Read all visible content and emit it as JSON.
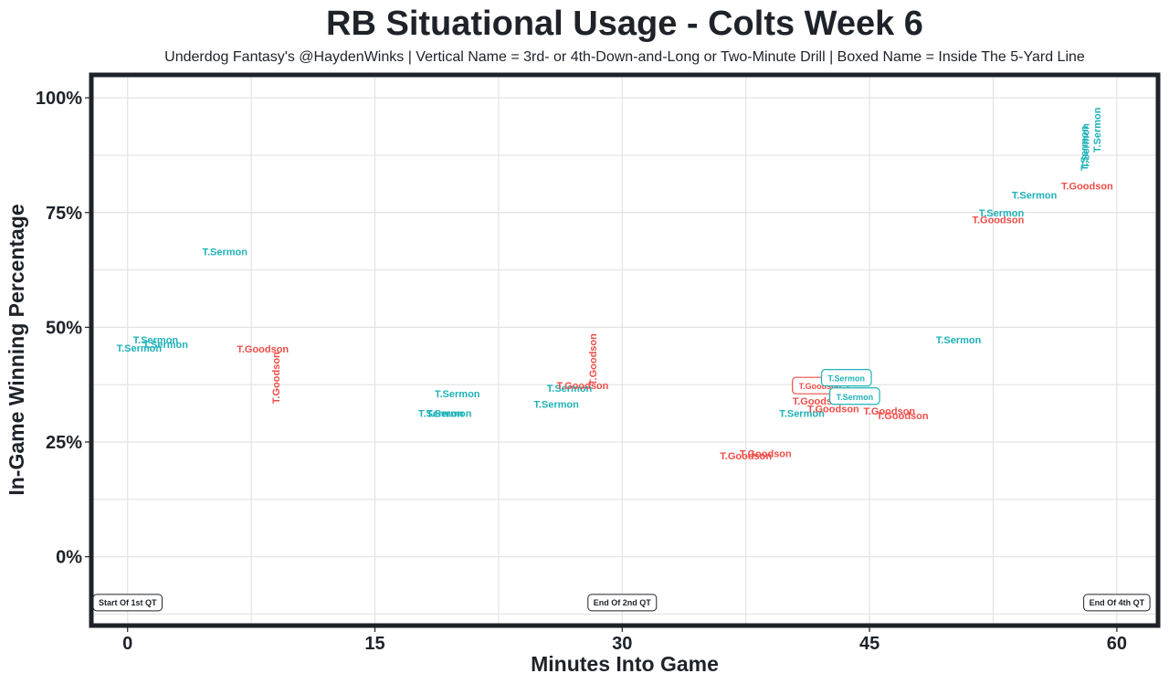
{
  "chart_data": {
    "type": "scatter",
    "title": "RB Situational Usage - Colts Week 6",
    "subtitle": "Underdog Fantasy's @HaydenWinks | Vertical Name = 3rd- or 4th-Down-and-Long or Two-Minute Drill | Boxed Name = Inside The 5-Yard Line",
    "xlabel": "Minutes Into Game",
    "ylabel": "In-Game Winning Percentage",
    "xlim": [
      -2.2,
      62.5
    ],
    "ylim": [
      -15,
      105
    ],
    "x_ticks": [
      0,
      15,
      30,
      45,
      60
    ],
    "x_tick_labels": [
      "0",
      "15",
      "30",
      "45",
      "60"
    ],
    "y_ticks": [
      0,
      25,
      50,
      75,
      100
    ],
    "y_tick_labels": [
      "0%",
      "25%",
      "50%",
      "75%",
      "100%"
    ],
    "grid": true,
    "colors": {
      "T.Sermon": "#1fb2b8",
      "T.Goodson": "#ef4d47"
    },
    "points": [
      {
        "player": "T.Sermon",
        "x": 0.7,
        "y": 45.5,
        "vertical": false,
        "boxed": false
      },
      {
        "player": "T.Sermon",
        "x": 1.7,
        "y": 47.3,
        "vertical": false,
        "boxed": false
      },
      {
        "player": "T.Sermon",
        "x": 2.3,
        "y": 46.3,
        "vertical": false,
        "boxed": false
      },
      {
        "player": "T.Sermon",
        "x": 5.9,
        "y": 66.5,
        "vertical": false,
        "boxed": false
      },
      {
        "player": "T.Goodson",
        "x": 8.2,
        "y": 45.3,
        "vertical": false,
        "boxed": false
      },
      {
        "player": "T.Goodson",
        "x": 9.0,
        "y": 39.0,
        "vertical": true,
        "boxed": false
      },
      {
        "player": "T.Sermon",
        "x": 19.0,
        "y": 31.3,
        "vertical": false,
        "boxed": false
      },
      {
        "player": "T.Sermon",
        "x": 19.5,
        "y": 31.3,
        "vertical": false,
        "boxed": false
      },
      {
        "player": "T.Sermon",
        "x": 20.0,
        "y": 35.5,
        "vertical": false,
        "boxed": false
      },
      {
        "player": "T.Sermon",
        "x": 26.0,
        "y": 33.3,
        "vertical": false,
        "boxed": false
      },
      {
        "player": "T.Sermon",
        "x": 26.8,
        "y": 36.7,
        "vertical": false,
        "boxed": false
      },
      {
        "player": "T.Goodson",
        "x": 27.6,
        "y": 37.3,
        "vertical": false,
        "boxed": false
      },
      {
        "player": "T.Goodson",
        "x": 28.2,
        "y": 43.0,
        "vertical": true,
        "boxed": false
      },
      {
        "player": "T.Goodson",
        "x": 37.5,
        "y": 22.0,
        "vertical": false,
        "boxed": false
      },
      {
        "player": "T.Goodson",
        "x": 38.7,
        "y": 22.5,
        "vertical": false,
        "boxed": false
      },
      {
        "player": "T.Sermon",
        "x": 40.9,
        "y": 31.3,
        "vertical": false,
        "boxed": false
      },
      {
        "player": "T.Goodson",
        "x": 41.9,
        "y": 34.0,
        "vertical": false,
        "boxed": false
      },
      {
        "player": "T.Goodson",
        "x": 42.0,
        "y": 37.3,
        "vertical": false,
        "boxed": true
      },
      {
        "player": "T.Goodson",
        "x": 42.8,
        "y": 32.3,
        "vertical": false,
        "boxed": false
      },
      {
        "player": "T.Sermon",
        "x": 43.6,
        "y": 39.0,
        "vertical": false,
        "boxed": true
      },
      {
        "player": "T.Sermon",
        "x": 44.1,
        "y": 35.0,
        "vertical": false,
        "boxed": true
      },
      {
        "player": "T.Goodson",
        "x": 46.2,
        "y": 31.8,
        "vertical": false,
        "boxed": false
      },
      {
        "player": "T.Goodson",
        "x": 47.0,
        "y": 30.8,
        "vertical": false,
        "boxed": false
      },
      {
        "player": "T.Sermon",
        "x": 50.4,
        "y": 47.3,
        "vertical": false,
        "boxed": false
      },
      {
        "player": "T.Goodson",
        "x": 52.8,
        "y": 73.5,
        "vertical": false,
        "boxed": false
      },
      {
        "player": "T.Sermon",
        "x": 53.0,
        "y": 75.0,
        "vertical": false,
        "boxed": false
      },
      {
        "player": "T.Sermon",
        "x": 55.0,
        "y": 78.8,
        "vertical": false,
        "boxed": false
      },
      {
        "player": "T.Goodson",
        "x": 58.2,
        "y": 80.8,
        "vertical": false,
        "boxed": false
      },
      {
        "player": "T.Sermon",
        "x": 58.0,
        "y": 89.0,
        "vertical": true,
        "boxed": false
      },
      {
        "player": "T.Sermon",
        "x": 58.1,
        "y": 89.5,
        "vertical": true,
        "boxed": false
      },
      {
        "player": "T.Sermon",
        "x": 58.8,
        "y": 93.0,
        "vertical": true,
        "boxed": false
      }
    ],
    "annotations": [
      {
        "text": "Start Of 1st QT",
        "x": 0,
        "y": -10
      },
      {
        "text": "End Of 2nd QT",
        "x": 30,
        "y": -10
      },
      {
        "text": "End Of 4th QT",
        "x": 60,
        "y": -10
      }
    ]
  }
}
